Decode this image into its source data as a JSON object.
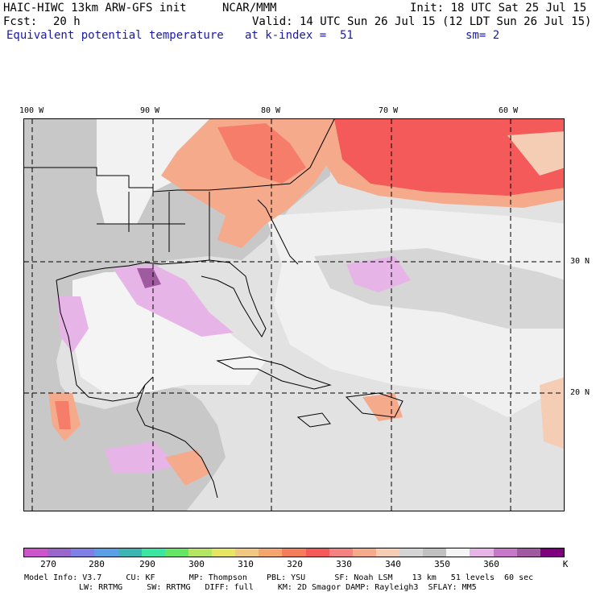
{
  "header": {
    "model": "HAIC-HIWC 13km ARW-GFS init",
    "institution": "NCAR/MMM",
    "init": "Init: 18 UTC Sat 25 Jul 15",
    "fcst_label": "Fcst:",
    "fcst_value": "20 h",
    "valid": "Valid: 14 UTC Sun 26 Jul 15 (12 LDT Sun 26 Jul 15)",
    "field": "Equivalent potential temperature",
    "level": "at k-index =  51",
    "smoothing": "sm= 2"
  },
  "map": {
    "lon_labels": [
      "100 W",
      "90 W",
      "80 W",
      "70 W",
      "60 W"
    ],
    "lat_labels": [
      "30 N",
      "20 N"
    ]
  },
  "colorbar": {
    "colors": [
      "#cc55cc",
      "#9966cc",
      "#7f7fe6",
      "#5a9ee6",
      "#3cb4b4",
      "#3ce6a0",
      "#64e664",
      "#b4e664",
      "#e6e664",
      "#f0c87f",
      "#f5a56e",
      "#f57d5a",
      "#f55a5a",
      "#f58282",
      "#f5aa8c",
      "#f5cdb4",
      "#d4d4d4",
      "#c0c0c0",
      "#f5f5f5",
      "#e6b4e6",
      "#c878c8",
      "#a05aa0",
      "#7f007f"
    ],
    "labels": [
      "270",
      "280",
      "290",
      "300",
      "310",
      "320",
      "330",
      "340",
      "350",
      "360",
      "K"
    ]
  },
  "footer": {
    "line1": "Model Info: V3.7     CU: KF       MP: Thompson    PBL: YSU      SF: Noah LSM    13 km   51 levels  60 sec",
    "line2": "LW: RRTMG     SW: RRTMG   DIFF: full     KM: 2D Smagor DAMP: Rayleigh3  SFLAY: MM5"
  }
}
